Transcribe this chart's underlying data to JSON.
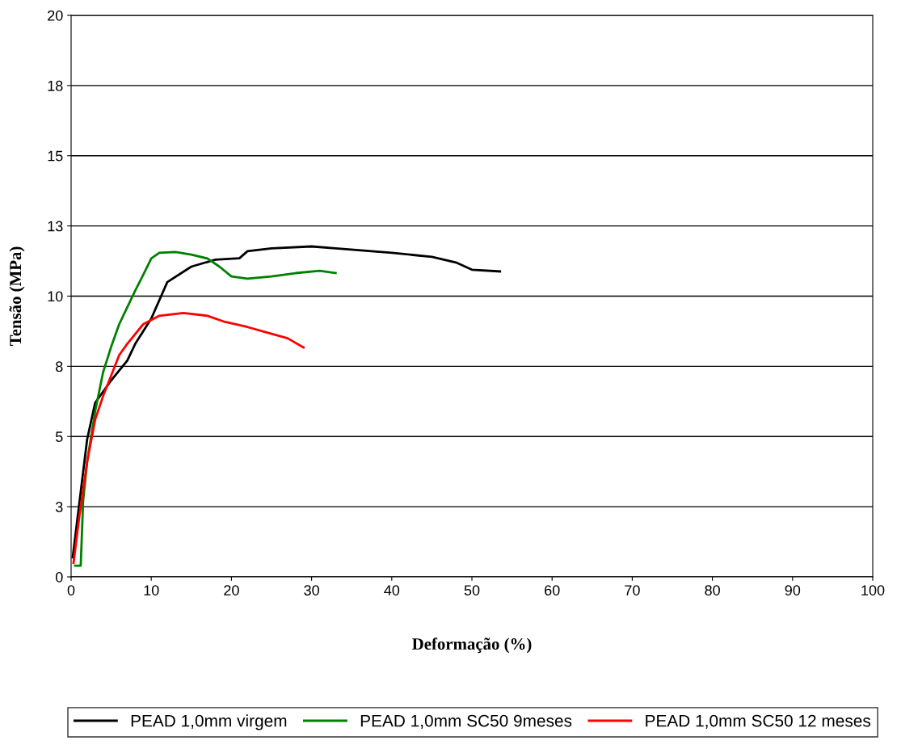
{
  "chart_data": {
    "type": "line",
    "xlabel": "Deformação (%)",
    "ylabel": "Tensão (MPa)",
    "xlim": [
      0,
      100
    ],
    "xticks": [
      0,
      10,
      20,
      30,
      40,
      50,
      60,
      70,
      80,
      90,
      100
    ],
    "ylim": [
      0,
      20
    ],
    "yticks": [
      0,
      {
        "value": 2.5,
        "label": "3"
      },
      5,
      {
        "value": 7.5,
        "label": "8"
      },
      10,
      {
        "value": 12.5,
        "label": "13"
      },
      15,
      {
        "value": 17.5,
        "label": "18"
      },
      20
    ],
    "grid": "y",
    "legend": "bottom",
    "series": [
      {
        "name": "PEAD 1,0mm virgem",
        "color": "#000000",
        "x": [
          0.2,
          2,
          3,
          5,
          7,
          8,
          10,
          12,
          15,
          18,
          21,
          22,
          25,
          30,
          33,
          40,
          45,
          48,
          50,
          53.5
        ],
        "values": [
          0.7,
          4.9,
          6.2,
          7.0,
          7.7,
          8.3,
          9.2,
          10.5,
          11.05,
          11.3,
          11.35,
          11.6,
          11.7,
          11.77,
          11.7,
          11.54,
          11.4,
          11.2,
          10.94,
          10.88
        ]
      },
      {
        "name": "PEAD 1,0mm SC50 9meses",
        "color": "#008000",
        "x": [
          0.5,
          1.2,
          1.5,
          2,
          3,
          4,
          5,
          6,
          7,
          8,
          9,
          10,
          11,
          13,
          15,
          17,
          18.5,
          20,
          22,
          25,
          28,
          31,
          33
        ],
        "values": [
          0.4,
          0.4,
          2.7,
          4.1,
          5.9,
          7.3,
          8.2,
          9.0,
          9.6,
          10.2,
          10.76,
          11.34,
          11.54,
          11.57,
          11.48,
          11.34,
          11.05,
          10.7,
          10.62,
          10.7,
          10.82,
          10.9,
          10.82
        ]
      },
      {
        "name": "PEAD 1,0mm SC50 12 meses",
        "color": "#ff0000",
        "x": [
          0.3,
          1,
          2,
          3,
          4,
          5,
          6,
          7,
          9,
          11,
          14,
          17,
          19,
          22,
          25,
          27,
          29
        ],
        "values": [
          0.5,
          2.1,
          4.1,
          5.6,
          6.45,
          7.17,
          7.9,
          8.3,
          9.0,
          9.3,
          9.4,
          9.3,
          9.1,
          8.9,
          8.66,
          8.5,
          8.17
        ]
      }
    ]
  }
}
